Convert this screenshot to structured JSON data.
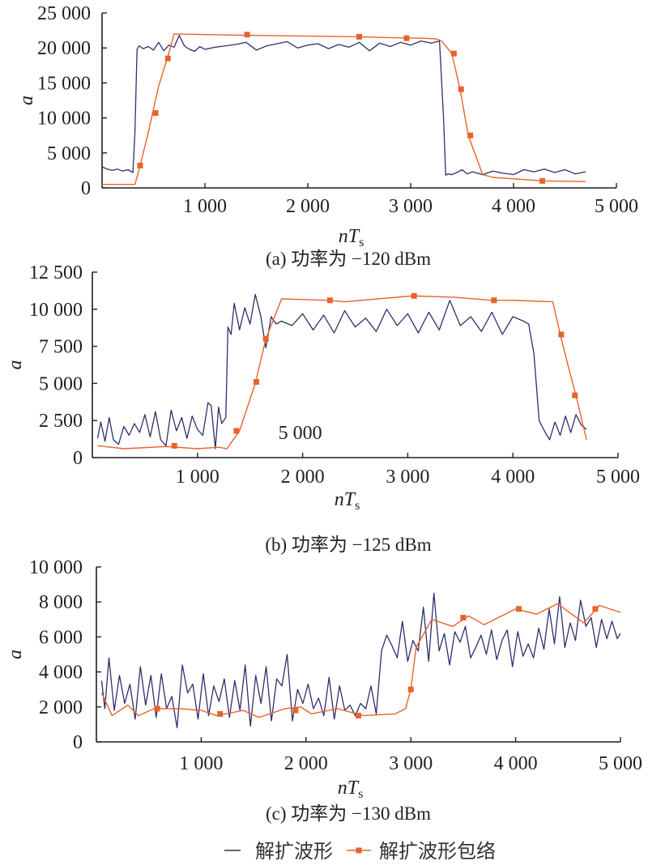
{
  "legend": {
    "items": [
      {
        "label": "解扩波形",
        "color": "#2f2f6e",
        "marker": "none"
      },
      {
        "label": "解扩波形包络",
        "color": "#e8622c",
        "marker": "square"
      }
    ]
  },
  "chart_data": [
    {
      "type": "line",
      "caption": "(a) 功率为 −120 dBm",
      "xlabel_main": "nT",
      "xlabel_sub": "s",
      "ylabel": "a",
      "xlim": [
        0,
        5000
      ],
      "ylim": [
        0,
        25000
      ],
      "xticks": [
        1000,
        2000,
        3000,
        4000,
        5000
      ],
      "xtick_labels": [
        "1 000",
        "2 000",
        "3 000",
        "4 000",
        "5 000"
      ],
      "yticks": [
        0,
        5000,
        10000,
        15000,
        20000,
        25000
      ],
      "ytick_labels": [
        "0",
        "5 000",
        "10 000",
        "15 000",
        "20 000",
        "25 000"
      ],
      "series": [
        {
          "name": "解扩波形",
          "x": [
            0,
            50,
            100,
            150,
            200,
            250,
            300,
            320,
            340,
            360,
            400,
            450,
            500,
            550,
            600,
            650,
            700,
            750,
            800,
            850,
            900,
            950,
            1000,
            1100,
            1200,
            1300,
            1400,
            1500,
            1600,
            1700,
            1800,
            1900,
            2000,
            2100,
            2200,
            2300,
            2400,
            2500,
            2600,
            2700,
            2800,
            2900,
            3000,
            3100,
            3200,
            3280,
            3320,
            3340,
            3360,
            3400,
            3450,
            3500,
            3550,
            3600,
            3700,
            3800,
            3900,
            4000,
            4100,
            4200,
            4300,
            4400,
            4500,
            4600,
            4700
          ],
          "y": [
            3000,
            2700,
            2500,
            2700,
            2400,
            2600,
            2200,
            8000,
            19800,
            20300,
            19900,
            20200,
            19700,
            20800,
            19600,
            20400,
            20100,
            21800,
            20300,
            19800,
            19500,
            20200,
            19800,
            20100,
            20300,
            20500,
            20800,
            19700,
            20300,
            20600,
            20900,
            20000,
            20400,
            20600,
            19900,
            20500,
            20100,
            20800,
            19600,
            20700,
            20200,
            20800,
            20400,
            21000,
            20700,
            21000,
            10000,
            1800,
            2000,
            1900,
            2200,
            2600,
            2000,
            2300,
            1900,
            2400,
            2100,
            1900,
            2600,
            2300,
            2700,
            2200,
            2600,
            2000,
            2300
          ]
        },
        {
          "name": "解扩波形包络",
          "x": [
            0,
            320,
            370,
            450,
            550,
            640,
            700,
            1400,
            2500,
            2960,
            3100,
            3250,
            3300,
            3400,
            3480,
            3560,
            3700,
            3800,
            4000,
            4300,
            4700
          ],
          "y": [
            500,
            500,
            3200,
            8000,
            14500,
            18800,
            22000,
            21800,
            21600,
            21400,
            21400,
            21300,
            21000,
            19200,
            14100,
            7500,
            1900,
            1500,
            1300,
            1000,
            900
          ],
          "markers": [
            [
              370,
              3200
            ],
            [
              520,
              10700
            ],
            [
              640,
              18500
            ],
            [
              1410,
              21900
            ],
            [
              2500,
              21600
            ],
            [
              2960,
              21400
            ],
            [
              3420,
              19200
            ],
            [
              3490,
              14100
            ],
            [
              3580,
              7500
            ],
            [
              4280,
              1000
            ]
          ]
        }
      ]
    },
    {
      "type": "line",
      "caption": "(b) 功率为 −125 dBm",
      "annotation": "5 000",
      "xlabel_main": "nT",
      "xlabel_sub": "s",
      "ylabel": "a",
      "xlim": [
        0,
        5000
      ],
      "ylim": [
        0,
        12500
      ],
      "xticks": [
        1000,
        2000,
        3000,
        4000,
        5000
      ],
      "xtick_labels": [
        "1 000",
        "2 000",
        "3 000",
        "4 000",
        "5 000"
      ],
      "yticks": [
        0,
        2500,
        5000,
        7500,
        10000,
        12500
      ],
      "ytick_labels": [
        "0",
        "2 500",
        "5 000",
        "7 500",
        "10 000",
        "12 500"
      ],
      "series": [
        {
          "name": "解扩波形",
          "x": [
            50,
            80,
            120,
            160,
            200,
            250,
            300,
            350,
            400,
            450,
            500,
            550,
            600,
            650,
            700,
            750,
            800,
            850,
            900,
            950,
            1000,
            1050,
            1100,
            1130,
            1170,
            1200,
            1230,
            1270,
            1290,
            1320,
            1350,
            1400,
            1450,
            1500,
            1550,
            1600,
            1650,
            1700,
            1750,
            1800,
            1900,
            2000,
            2100,
            2200,
            2300,
            2400,
            2500,
            2600,
            2700,
            2800,
            2900,
            3000,
            3100,
            3200,
            3300,
            3400,
            3500,
            3600,
            3700,
            3800,
            3900,
            4000,
            4100,
            4150,
            4200,
            4250,
            4300,
            4350,
            4400,
            4450,
            4500,
            4550,
            4600,
            4650,
            4700
          ],
          "y": [
            1300,
            2400,
            1100,
            2700,
            1200,
            900,
            2100,
            1500,
            2300,
            1700,
            2900,
            1400,
            3100,
            1200,
            800,
            3200,
            1800,
            2700,
            1300,
            2800,
            1900,
            1500,
            3700,
            3500,
            600,
            3400,
            2300,
            2700,
            8800,
            8300,
            10400,
            8600,
            10100,
            9000,
            11000,
            9600,
            7400,
            9500,
            9000,
            9200,
            8900,
            9700,
            8600,
            9600,
            8400,
            9900,
            8800,
            9400,
            8500,
            10000,
            8900,
            9700,
            8400,
            9800,
            8600,
            10600,
            8900,
            9500,
            8500,
            9800,
            8300,
            9500,
            9200,
            9000,
            7000,
            2500,
            1800,
            1200,
            2400,
            1500,
            2800,
            1700,
            2900,
            2200,
            1900
          ],
          "fill_note": ""
        },
        {
          "name": "解扩波形包络",
          "x": [
            50,
            300,
            700,
            1000,
            1200,
            1280,
            1400,
            1550,
            1650,
            1800,
            2250,
            2400,
            3050,
            3450,
            3800,
            4000,
            4380,
            4450,
            4550,
            4600,
            4700
          ],
          "y": [
            800,
            600,
            750,
            600,
            700,
            600,
            1800,
            5000,
            8000,
            10700,
            10600,
            10500,
            10900,
            10800,
            10600,
            10600,
            10500,
            8300,
            5500,
            4200,
            1200
          ],
          "markers": [
            [
              780,
              800
            ],
            [
              1370,
              1800
            ],
            [
              1560,
              5100
            ],
            [
              1650,
              8000
            ],
            [
              2260,
              10600
            ],
            [
              3060,
              10900
            ],
            [
              3820,
              10600
            ],
            [
              4460,
              8300
            ],
            [
              4590,
              4200
            ]
          ]
        }
      ]
    },
    {
      "type": "line",
      "caption": "(c) 功率为 −130 dBm",
      "xlabel_main": "nT",
      "xlabel_sub": "s",
      "ylabel": "a",
      "xlim": [
        0,
        5000
      ],
      "ylim": [
        0,
        10000
      ],
      "xticks": [
        1000,
        2000,
        3000,
        4000,
        5000
      ],
      "xtick_labels": [
        "1 000",
        "2 000",
        "3 000",
        "4 000",
        "5 000"
      ],
      "yticks": [
        0,
        2000,
        4000,
        6000,
        8000,
        10000
      ],
      "ytick_labels": [
        "0",
        "2 000",
        "4 000",
        "6 000",
        "8 000",
        "10 000"
      ],
      "series": [
        {
          "name": "解扩波形",
          "x": [
            50,
            80,
            120,
            170,
            220,
            270,
            320,
            370,
            420,
            470,
            520,
            570,
            620,
            670,
            720,
            770,
            820,
            870,
            920,
            970,
            1020,
            1070,
            1120,
            1170,
            1220,
            1270,
            1320,
            1370,
            1420,
            1470,
            1520,
            1570,
            1620,
            1670,
            1720,
            1770,
            1820,
            1870,
            1920,
            1970,
            2020,
            2070,
            2120,
            2170,
            2220,
            2270,
            2320,
            2370,
            2420,
            2470,
            2520,
            2570,
            2620,
            2670,
            2720,
            2770,
            2820,
            2870,
            2920,
            2970,
            3020,
            3070,
            3120,
            3170,
            3220,
            3270,
            3320,
            3370,
            3420,
            3470,
            3520,
            3570,
            3620,
            3670,
            3720,
            3770,
            3820,
            3870,
            3920,
            3970,
            4020,
            4070,
            4120,
            4170,
            4220,
            4270,
            4320,
            4370,
            4420,
            4470,
            4520,
            4570,
            4620,
            4670,
            4720,
            4770,
            4820,
            4870,
            4920,
            4970,
            5000
          ],
          "y": [
            3500,
            1900,
            4800,
            1800,
            3800,
            2200,
            3300,
            1300,
            4300,
            2100,
            3800,
            1400,
            3900,
            1900,
            2600,
            800,
            4400,
            2800,
            3300,
            1300,
            3900,
            1500,
            3200,
            2300,
            3600,
            1400,
            3500,
            1800,
            4400,
            900,
            3800,
            2200,
            4300,
            1200,
            3600,
            3200,
            5000,
            1200,
            3000,
            2200,
            3300,
            1900,
            2500,
            1500,
            3700,
            1300,
            3200,
            1800,
            2100,
            1500,
            2200,
            1900,
            3200,
            1600,
            5200,
            6100,
            5500,
            4800,
            6900,
            4600,
            5800,
            5200,
            7700,
            4600,
            8500,
            5200,
            6200,
            4400,
            6300,
            5700,
            6600,
            4800,
            5400,
            6100,
            5000,
            6400,
            4700,
            5800,
            6400,
            4300,
            6300,
            4900,
            5600,
            4800,
            6500,
            5300,
            7600,
            5600,
            8300,
            5400,
            6800,
            5800,
            8100,
            6600,
            7100,
            5400,
            7000,
            5900,
            6900,
            5900,
            6200
          ],
          "fill_note": ""
        },
        {
          "name": "解扩波形包络",
          "x": [
            50,
            150,
            300,
            400,
            550,
            800,
            1000,
            1150,
            1400,
            1550,
            1800,
            1950,
            2050,
            2300,
            2550,
            2850,
            2950,
            3000,
            3050,
            3200,
            3400,
            3550,
            3700,
            4000,
            4200,
            4400,
            4650,
            4800,
            4950,
            5000
          ],
          "y": [
            2800,
            1500,
            2100,
            1500,
            1900,
            1900,
            1800,
            1500,
            1800,
            1400,
            1900,
            2000,
            1600,
            1900,
            1500,
            1600,
            1900,
            3000,
            5400,
            7000,
            6600,
            7200,
            6700,
            7600,
            7300,
            7900,
            6800,
            7800,
            7500,
            7400
          ],
          "markers": [
            [
              580,
              1900
            ],
            [
              1180,
              1600
            ],
            [
              1900,
              1800
            ],
            [
              2500,
              1500
            ],
            [
              3000,
              3000
            ],
            [
              3500,
              7100
            ],
            [
              4030,
              7600
            ],
            [
              4760,
              7600
            ]
          ]
        }
      ]
    }
  ]
}
